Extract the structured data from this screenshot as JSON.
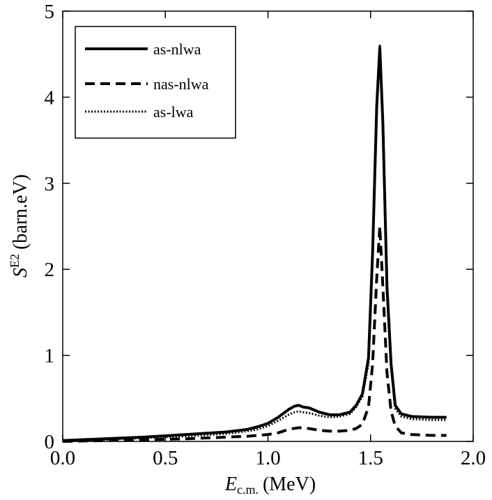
{
  "chart_data": {
    "type": "line",
    "title": "",
    "xlabel": {
      "main": "E",
      "sub": "c.m.",
      "unit": "(MeV)"
    },
    "ylabel": {
      "main": "S",
      "sup": "E2",
      "unit": "(barn.eV)"
    },
    "xlim": [
      0.0,
      2.0
    ],
    "ylim": [
      0,
      5
    ],
    "xticks": [
      "0.0",
      "0.5",
      "1.0",
      "1.5",
      "2.0"
    ],
    "yticks": [
      "0",
      "1",
      "2",
      "3",
      "4",
      "5"
    ],
    "grid": false,
    "legend_position": "top-left",
    "series": [
      {
        "name": "as-nlwa",
        "style": "solid",
        "x": [
          0.0,
          0.2,
          0.4,
          0.6,
          0.8,
          0.9,
          0.95,
          1.0,
          1.05,
          1.1,
          1.13,
          1.15,
          1.17,
          1.2,
          1.25,
          1.3,
          1.35,
          1.4,
          1.43,
          1.46,
          1.49,
          1.51,
          1.53,
          1.545,
          1.56,
          1.58,
          1.6,
          1.62,
          1.65,
          1.7,
          1.8,
          1.87
        ],
        "y": [
          0.01,
          0.03,
          0.05,
          0.08,
          0.11,
          0.14,
          0.17,
          0.21,
          0.28,
          0.37,
          0.41,
          0.42,
          0.4,
          0.39,
          0.34,
          0.31,
          0.31,
          0.34,
          0.42,
          0.55,
          0.97,
          2.2,
          3.9,
          4.58,
          3.7,
          1.8,
          0.9,
          0.42,
          0.32,
          0.29,
          0.28,
          0.28
        ]
      },
      {
        "name": "nas-nlwa",
        "style": "dashed",
        "x": [
          0.0,
          0.2,
          0.4,
          0.6,
          0.8,
          0.9,
          1.0,
          1.05,
          1.1,
          1.15,
          1.2,
          1.25,
          1.3,
          1.35,
          1.4,
          1.43,
          1.46,
          1.49,
          1.51,
          1.53,
          1.545,
          1.56,
          1.58,
          1.6,
          1.62,
          1.65,
          1.7,
          1.8,
          1.87
        ],
        "y": [
          0.0,
          0.01,
          0.02,
          0.03,
          0.05,
          0.06,
          0.08,
          0.1,
          0.14,
          0.16,
          0.15,
          0.13,
          0.12,
          0.12,
          0.13,
          0.15,
          0.2,
          0.4,
          0.9,
          1.9,
          2.5,
          1.8,
          0.8,
          0.35,
          0.18,
          0.1,
          0.08,
          0.07,
          0.07
        ]
      },
      {
        "name": "as-lwa",
        "style": "dotted",
        "x": [
          0.0,
          0.2,
          0.4,
          0.6,
          0.8,
          0.9,
          0.95,
          1.0,
          1.05,
          1.1,
          1.13,
          1.15,
          1.17,
          1.2,
          1.25,
          1.3,
          1.35,
          1.4,
          1.43,
          1.46,
          1.49,
          1.51,
          1.53,
          1.545,
          1.56,
          1.58,
          1.6,
          1.62,
          1.65,
          1.7,
          1.8,
          1.87
        ],
        "y": [
          0.0,
          0.02,
          0.04,
          0.06,
          0.09,
          0.12,
          0.14,
          0.18,
          0.24,
          0.31,
          0.34,
          0.35,
          0.34,
          0.33,
          0.3,
          0.28,
          0.29,
          0.32,
          0.4,
          0.52,
          0.9,
          2.1,
          3.8,
          4.6,
          3.6,
          1.7,
          0.85,
          0.38,
          0.29,
          0.26,
          0.25,
          0.25
        ]
      }
    ]
  }
}
